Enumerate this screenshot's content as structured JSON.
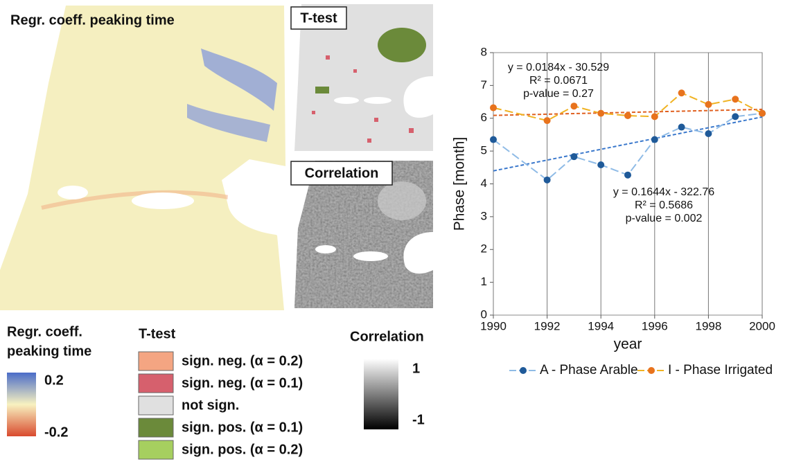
{
  "maps": {
    "regression": {
      "title": "Regr. coeff. peaking time"
    },
    "ttest": {
      "title": "T-test"
    },
    "correlation": {
      "title": "Correlation"
    }
  },
  "legends": {
    "regression": {
      "title_lines": [
        "Regr. coeff.",
        "peaking time"
      ],
      "labels": [
        "0.2",
        "-0.2"
      ]
    },
    "ttest": {
      "title": "T-test",
      "items": [
        {
          "label": "sign. neg. (α = 0.2)",
          "color": "#f4a582"
        },
        {
          "label": "sign. neg. (α = 0.1)",
          "color": "#d6606d"
        },
        {
          "label": "not sign.",
          "color": "#e0e0e0"
        },
        {
          "label": "sign. pos. (α = 0.1)",
          "color": "#6b8a3a"
        },
        {
          "label": "sign. pos. (α = 0.2)",
          "color": "#a6cf5f"
        }
      ]
    },
    "correlation": {
      "title": "Correlation",
      "labels": [
        "1",
        "-1"
      ]
    }
  },
  "chart_data": {
    "type": "line",
    "xlabel": "year",
    "ylabel": "Phase [month]",
    "x": [
      1990,
      1992,
      1993,
      1994,
      1995,
      1996,
      1997,
      1998,
      1999,
      2000
    ],
    "series": [
      {
        "name": "A - Phase Arable",
        "color": "#1f5a99",
        "line_color": "#8fbbe6",
        "values": [
          5.35,
          4.12,
          4.83,
          4.58,
          4.27,
          5.35,
          5.73,
          5.53,
          6.05,
          6.15
        ],
        "trend": {
          "slope": 0.1644,
          "intercept": -322.76,
          "color": "#3a78cc"
        },
        "annotation": [
          "y = 0.1644x - 322.76",
          "R² = 0.5686",
          "p-value = 0.002"
        ]
      },
      {
        "name": "I - Phase Irrigated",
        "color": "#e8731d",
        "line_color": "#f0b323",
        "values": [
          6.32,
          5.93,
          6.37,
          6.15,
          6.08,
          6.05,
          6.77,
          6.42,
          6.58,
          6.15
        ],
        "trend": {
          "slope": 0.0184,
          "intercept": -30.529,
          "color": "#e06020"
        },
        "annotation": [
          "y = 0.0184x - 30.529",
          "R² = 0.0671",
          "p-value = 0.27"
        ]
      }
    ],
    "xlim": [
      1990,
      2000
    ],
    "xticks": [
      1990,
      1992,
      1994,
      1996,
      1998,
      2000
    ],
    "ylim": [
      0,
      8
    ],
    "yticks": [
      0,
      1,
      2,
      3,
      4,
      5,
      6,
      7,
      8
    ],
    "grid": "x"
  }
}
